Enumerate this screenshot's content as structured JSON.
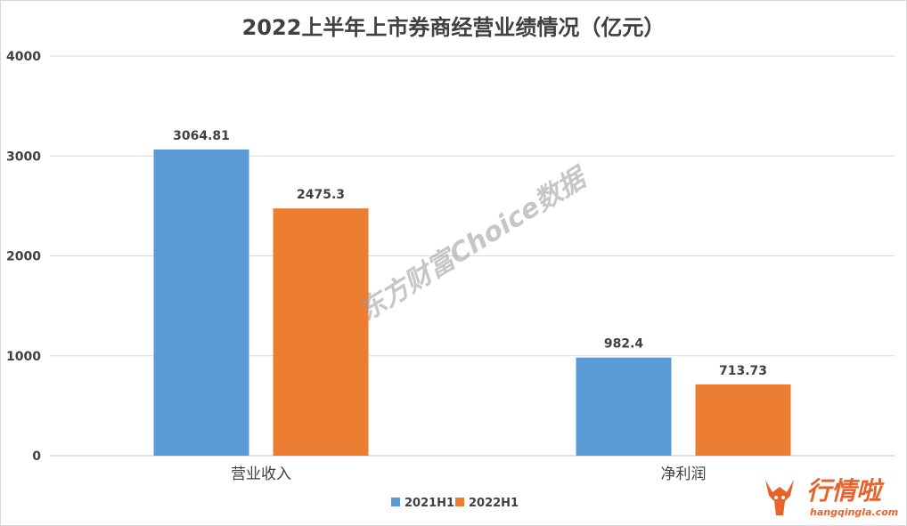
{
  "chart_data": {
    "type": "bar",
    "title": "2022上半年上市券商经营业绩情况（亿元）",
    "categories": [
      "营业收入",
      "净利润"
    ],
    "series": [
      {
        "name": "2021H1",
        "color": "#5b9bd5",
        "values": [
          3064.81,
          982.4
        ],
        "labels": [
          "3064.81",
          "982.4"
        ]
      },
      {
        "name": "2022H1",
        "color": "#ed7d31",
        "values": [
          2475.3,
          713.73
        ],
        "labels": [
          "2475.3",
          "713.73"
        ]
      }
    ],
    "ylim": [
      0,
      4000
    ],
    "yticks": [
      0,
      1000,
      2000,
      3000,
      4000
    ],
    "grid": true,
    "legend_position": "bottom"
  },
  "watermark": "东方财富Choice数据",
  "logo": {
    "name": "行情啦",
    "url": "hangqingla.com",
    "icon": "bull-head-icon",
    "color": "#e8632b"
  }
}
